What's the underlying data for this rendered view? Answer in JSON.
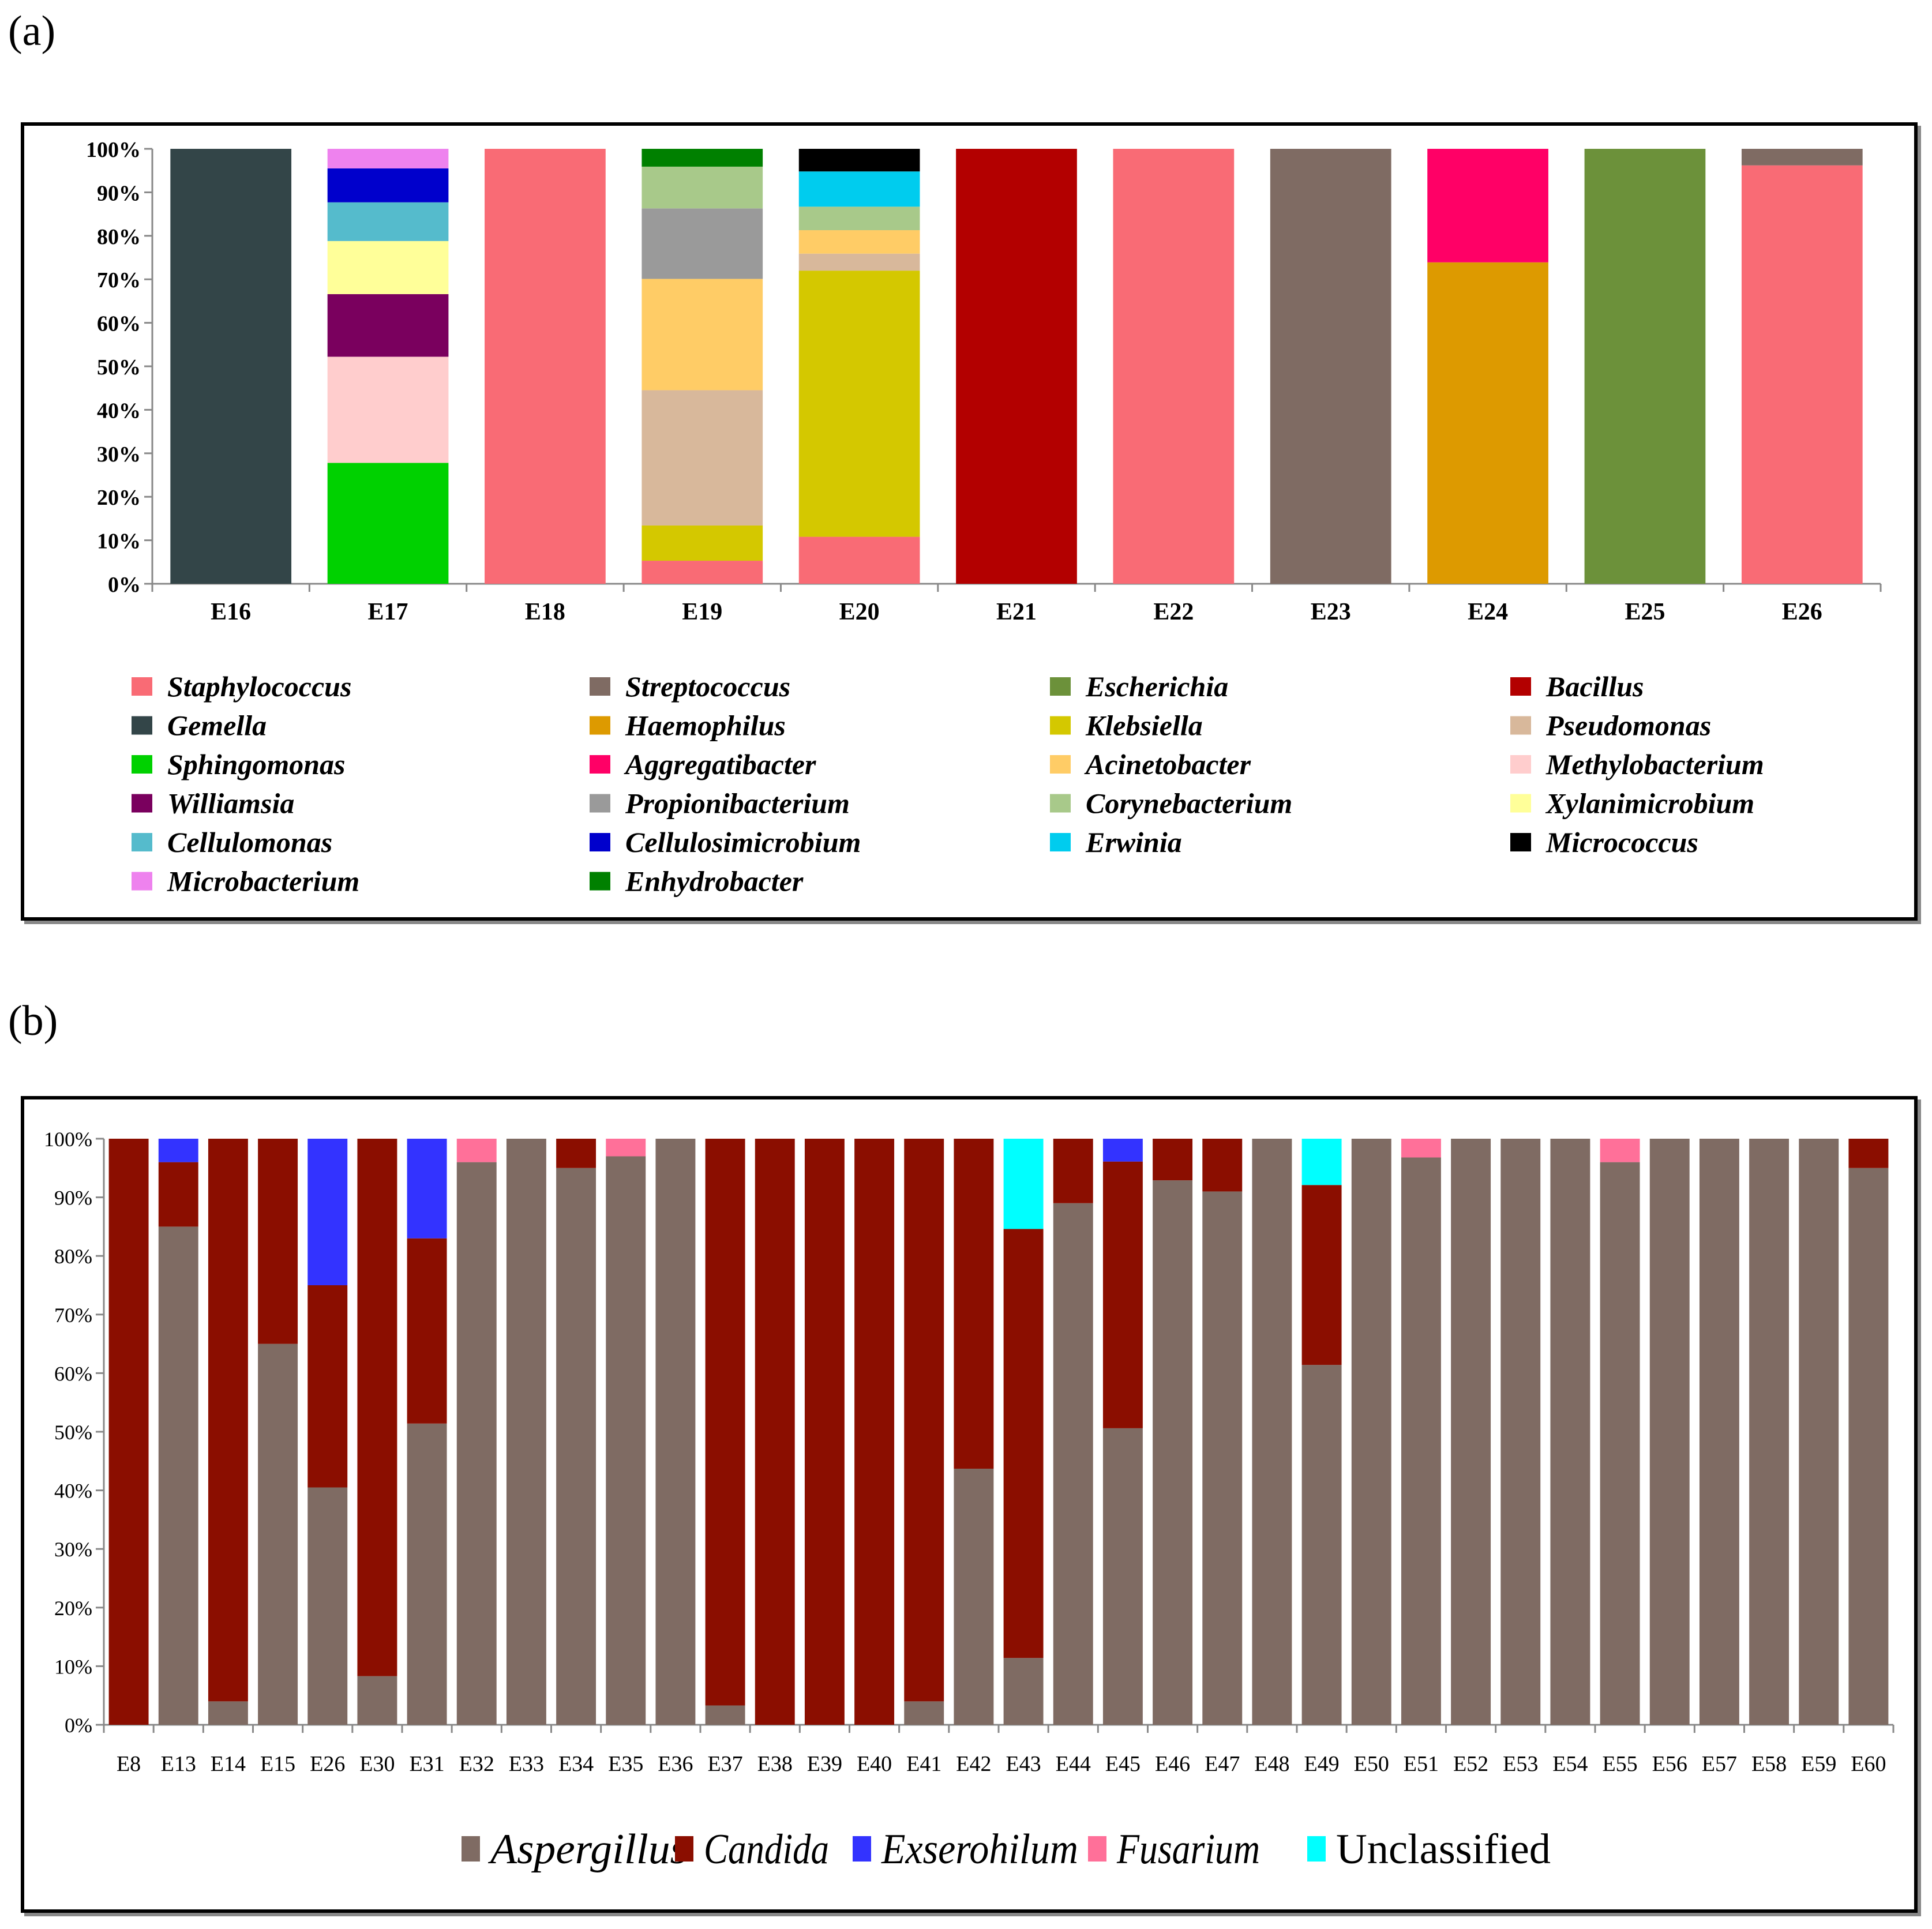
{
  "panels": {
    "a_label": "(a)",
    "b_label": "(b)"
  },
  "chart_data": [
    {
      "type": "bar",
      "stacked": true,
      "title": "",
      "xlabel": "",
      "ylabel": "",
      "ylim": [
        0,
        100
      ],
      "y_ticks": [
        "0%",
        "10%",
        "20%",
        "30%",
        "40%",
        "50%",
        "60%",
        "70%",
        "80%",
        "90%",
        "100%"
      ],
      "categories": [
        "E16",
        "E17",
        "E18",
        "E19",
        "E20",
        "E21",
        "E22",
        "E23",
        "E24",
        "E25",
        "E26"
      ],
      "legend_position": "bottom",
      "series": [
        {
          "name": "Staphylococcus",
          "color": "#F96B75",
          "values": [
            0,
            0,
            100,
            5.3,
            10.8,
            0,
            100,
            0,
            0,
            0,
            96.2
          ]
        },
        {
          "name": "Streptococcus",
          "color": "#7F6B63",
          "values": [
            0,
            0,
            0,
            0,
            0,
            0,
            0,
            100,
            0,
            0,
            3.8
          ]
        },
        {
          "name": "Escherichia",
          "color": "#6C913A",
          "values": [
            0,
            0,
            0,
            0,
            0,
            0,
            0,
            0,
            0,
            100,
            0
          ]
        },
        {
          "name": "Bacillus",
          "color": "#B30000",
          "values": [
            0,
            0,
            0,
            0,
            0,
            100,
            0,
            0,
            0,
            0,
            0
          ]
        },
        {
          "name": "Gemella",
          "color": "#334548",
          "values": [
            100,
            0,
            0,
            0,
            0,
            0,
            0,
            0,
            0,
            0,
            0
          ]
        },
        {
          "name": "Haemophilus",
          "color": "#DD9A00",
          "values": [
            0,
            0,
            0,
            0,
            0,
            0,
            0,
            0,
            73.9,
            0,
            0
          ]
        },
        {
          "name": "Klebsiella",
          "color": "#D4C800",
          "values": [
            0,
            0,
            0,
            8.1,
            61.2,
            0,
            0,
            0,
            0,
            0,
            0
          ]
        },
        {
          "name": "Pseudomonas",
          "color": "#D8B89B",
          "values": [
            0,
            0,
            0,
            31.1,
            3.9,
            0,
            0,
            0,
            0,
            0,
            0
          ]
        },
        {
          "name": "Sphingomonas",
          "color": "#00D100",
          "values": [
            0,
            27.8,
            0,
            0,
            0,
            0,
            0,
            0,
            0,
            0,
            0
          ]
        },
        {
          "name": "Aggregatibacter",
          "color": "#FF0066",
          "values": [
            0,
            0,
            0,
            0,
            0,
            0,
            0,
            0,
            26.1,
            0,
            0
          ]
        },
        {
          "name": "Acinetobacter",
          "color": "#FFCC66",
          "values": [
            0,
            0,
            0,
            25.6,
            5.4,
            0,
            0,
            0,
            0,
            0,
            0
          ]
        },
        {
          "name": "Methylobacterium",
          "color": "#FFCDCD",
          "values": [
            0,
            24.4,
            0,
            0,
            0,
            0,
            0,
            0,
            0,
            0,
            0
          ]
        },
        {
          "name": "Williamsia",
          "color": "#7A005E",
          "values": [
            0,
            14.4,
            0,
            0,
            0,
            0,
            0,
            0,
            0,
            0,
            0
          ]
        },
        {
          "name": "Propionibacterium",
          "color": "#9A9A9A",
          "values": [
            0,
            0,
            0,
            16.2,
            0,
            0,
            0,
            0,
            0,
            0,
            0
          ]
        },
        {
          "name": "Corynebacterium",
          "color": "#A8C98A",
          "values": [
            0,
            0,
            0,
            9.6,
            5.4,
            0,
            0,
            0,
            0,
            0,
            0
          ]
        },
        {
          "name": "Xylanimicrobium",
          "color": "#FFFF99",
          "values": [
            0,
            12.2,
            0,
            0,
            0,
            0,
            0,
            0,
            0,
            0,
            0
          ]
        },
        {
          "name": "Cellulomonas",
          "color": "#55BBCC",
          "values": [
            0,
            8.9,
            0,
            0,
            0,
            0,
            0,
            0,
            0,
            0,
            0
          ]
        },
        {
          "name": "Cellulosimicrobium",
          "color": "#0000CC",
          "values": [
            0,
            7.8,
            0,
            0,
            0,
            0,
            0,
            0,
            0,
            0,
            0
          ]
        },
        {
          "name": "Erwinia",
          "color": "#00CCEE",
          "values": [
            0,
            0,
            0,
            0,
            8.1,
            0,
            0,
            0,
            0,
            0,
            0
          ]
        },
        {
          "name": "Micrococcus",
          "color": "#000000",
          "values": [
            0,
            0,
            0,
            0,
            5.2,
            0,
            0,
            0,
            0,
            0,
            0
          ]
        },
        {
          "name": "Microbacterium",
          "color": "#EE82EE",
          "values": [
            0,
            4.5,
            0,
            0,
            0,
            0,
            0,
            0,
            0,
            0,
            0
          ]
        },
        {
          "name": "Enhydrobacter",
          "color": "#008000",
          "values": [
            0,
            0,
            0,
            4.1,
            0,
            0,
            0,
            0,
            0,
            0,
            0
          ]
        }
      ]
    },
    {
      "type": "bar",
      "stacked": true,
      "title": "",
      "xlabel": "",
      "ylabel": "",
      "ylim": [
        0,
        100
      ],
      "y_ticks": [
        "0%",
        "10%",
        "20%",
        "30%",
        "40%",
        "50%",
        "60%",
        "70%",
        "80%",
        "90%",
        "100%"
      ],
      "categories": [
        "E8",
        "E13",
        "E14",
        "E15",
        "E26",
        "E30",
        "E31",
        "E32",
        "E33",
        "E34",
        "E35",
        "E36",
        "E37",
        "E38",
        "E39",
        "E40",
        "E41",
        "E42",
        "E43",
        "E44",
        "E45",
        "E46",
        "E47",
        "E48",
        "E49",
        "E50",
        "E51",
        "E52",
        "E53",
        "E54",
        "E55",
        "E56",
        "E57",
        "E58",
        "E59",
        "E60"
      ],
      "legend_position": "bottom",
      "series": [
        {
          "name": "Aspergillus",
          "color": "#7F6B63",
          "italic": true,
          "values": [
            0,
            85,
            4,
            65,
            40.5,
            8.3,
            51.4,
            96,
            100,
            95,
            97,
            100,
            3.3,
            0,
            0,
            0,
            4,
            43.7,
            11.4,
            89,
            50.6,
            92.9,
            91,
            100,
            61.4,
            100,
            96.8,
            100,
            100,
            100,
            96,
            100,
            100,
            100,
            100,
            95
          ]
        },
        {
          "name": "Candida",
          "color": "#8B0E00",
          "italic": true,
          "values": [
            100,
            11,
            96,
            35,
            34.5,
            91.7,
            31.6,
            0,
            0,
            5,
            0,
            0,
            96.7,
            100,
            100,
            100,
            96,
            56.3,
            73.2,
            11,
            45.5,
            7.1,
            9,
            0,
            30.7,
            0,
            0,
            0,
            0,
            0,
            0,
            0,
            0,
            0,
            0,
            5
          ]
        },
        {
          "name": "Exserohilum",
          "color": "#3333FF",
          "italic": true,
          "values": [
            0,
            4,
            0,
            0,
            25,
            0,
            17,
            0,
            0,
            0,
            0,
            0,
            0,
            0,
            0,
            0,
            0,
            0,
            0,
            0,
            3.9,
            0,
            0,
            0,
            0,
            0,
            0,
            0,
            0,
            0,
            0,
            0,
            0,
            0,
            0,
            0
          ]
        },
        {
          "name": "Fusarium",
          "color": "#FF7099",
          "italic": true,
          "values": [
            0,
            0,
            0,
            0,
            0,
            0,
            0,
            4,
            0,
            0,
            3,
            0,
            0,
            0,
            0,
            0,
            0,
            0,
            0,
            0,
            0,
            0,
            0,
            0,
            0,
            0,
            3.2,
            0,
            0,
            0,
            4,
            0,
            0,
            0,
            0,
            0
          ]
        },
        {
          "name": "Unclassified",
          "color": "#00FFFF",
          "italic": false,
          "values": [
            0,
            0,
            0,
            0,
            0,
            0,
            0,
            0,
            0,
            0,
            0,
            0,
            0,
            0,
            0,
            0,
            0,
            0,
            15.4,
            0,
            0,
            0,
            0,
            0,
            7.9,
            0,
            0,
            0,
            0,
            0,
            0,
            0,
            0,
            0,
            0,
            0
          ]
        }
      ]
    }
  ]
}
